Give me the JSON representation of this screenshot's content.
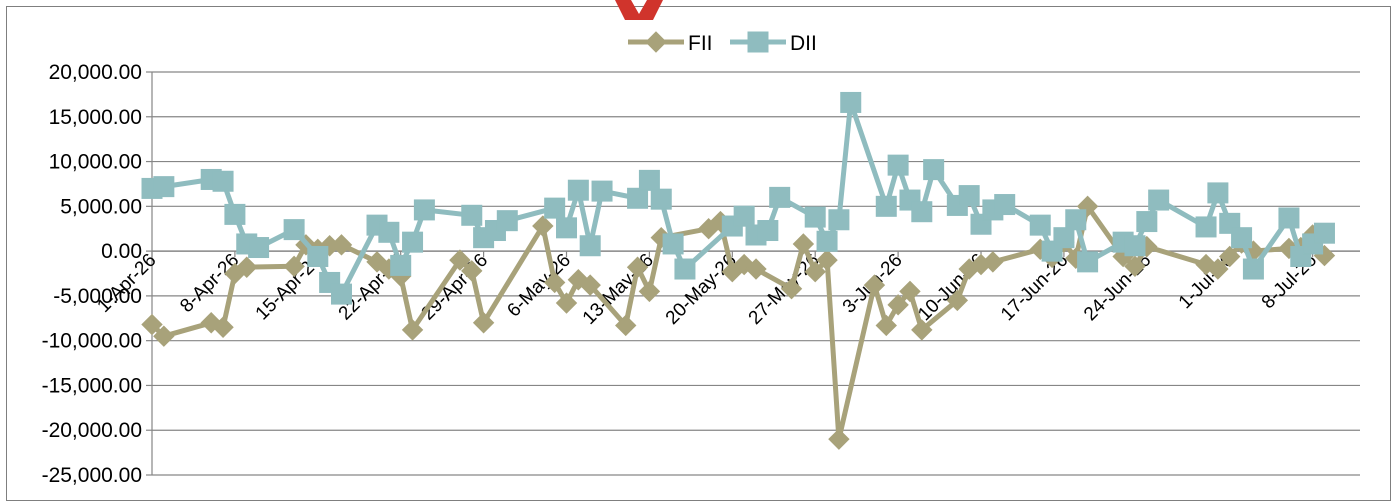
{
  "chart_data": {
    "type": "line",
    "title": "",
    "xlabel": "",
    "ylabel": "",
    "ylim": [
      -25000,
      20000
    ],
    "yticks": [
      20000,
      15000,
      10000,
      5000,
      0,
      -5000,
      -10000,
      -15000,
      -20000,
      -25000
    ],
    "ytick_labels": [
      "20,000.00",
      "15,000.00",
      "10,000.00",
      "5,000.00",
      "0.00",
      "-5,000.00",
      "-10,000.00",
      "-15,000.00",
      "-20,000.00",
      "-25,000.00"
    ],
    "xlim": [
      "2026-04-01",
      "2026-07-12"
    ],
    "xticks": [
      "2026-04-01",
      "2026-04-08",
      "2026-04-15",
      "2026-04-22",
      "2026-04-29",
      "2026-05-06",
      "2026-05-13",
      "2026-05-20",
      "2026-05-27",
      "2026-06-03",
      "2026-06-10",
      "2026-06-17",
      "2026-06-24",
      "2026-07-01",
      "2026-07-08"
    ],
    "xtick_labels": [
      "1-Apr-26",
      "8-Apr-26",
      "15-Apr-26",
      "22-Apr-26",
      "29-Apr-26",
      "6-May-26",
      "13-May-26",
      "20-May-26",
      "27-May-26",
      "3-Jun-26",
      "10-Jun-26",
      "17-Jun-26",
      "24-Jun-26",
      "1-Jul-26",
      "8-Jul-26"
    ],
    "grid": true,
    "legend_position": "top-center",
    "series": [
      {
        "name": "FII",
        "color": "#a8a27a",
        "marker": "diamond",
        "points": [
          {
            "x": "2026-04-01",
            "y": -8200
          },
          {
            "x": "2026-04-02",
            "y": -9500
          },
          {
            "x": "2026-04-06",
            "y": -8000
          },
          {
            "x": "2026-04-07",
            "y": -8500
          },
          {
            "x": "2026-04-08",
            "y": -2500
          },
          {
            "x": "2026-04-09",
            "y": -1800
          },
          {
            "x": "2026-04-13",
            "y": -1700
          },
          {
            "x": "2026-04-14",
            "y": 700
          },
          {
            "x": "2026-04-15",
            "y": 200
          },
          {
            "x": "2026-04-16",
            "y": 600
          },
          {
            "x": "2026-04-17",
            "y": 700
          },
          {
            "x": "2026-04-20",
            "y": -1200
          },
          {
            "x": "2026-04-21",
            "y": -2000
          },
          {
            "x": "2026-04-22",
            "y": -2800
          },
          {
            "x": "2026-04-23",
            "y": -8800
          },
          {
            "x": "2026-04-27",
            "y": -1000
          },
          {
            "x": "2026-04-28",
            "y": -2200
          },
          {
            "x": "2026-04-29",
            "y": -8000
          },
          {
            "x": "2026-05-04",
            "y": 2800
          },
          {
            "x": "2026-05-05",
            "y": -3500
          },
          {
            "x": "2026-05-06",
            "y": -5800
          },
          {
            "x": "2026-05-07",
            "y": -3200
          },
          {
            "x": "2026-05-08",
            "y": -3800
          },
          {
            "x": "2026-05-11",
            "y": -8300
          },
          {
            "x": "2026-05-12",
            "y": -1800
          },
          {
            "x": "2026-05-13",
            "y": -4500
          },
          {
            "x": "2026-05-14",
            "y": 1500
          },
          {
            "x": "2026-05-18",
            "y": 2500
          },
          {
            "x": "2026-05-19",
            "y": 3300
          },
          {
            "x": "2026-05-20",
            "y": -2300
          },
          {
            "x": "2026-05-21",
            "y": -1500
          },
          {
            "x": "2026-05-22",
            "y": -2000
          },
          {
            "x": "2026-05-25",
            "y": -4200
          },
          {
            "x": "2026-05-26",
            "y": 800
          },
          {
            "x": "2026-05-27",
            "y": -2300
          },
          {
            "x": "2026-05-28",
            "y": -1000
          },
          {
            "x": "2026-05-29",
            "y": -21000
          },
          {
            "x": "2026-06-01",
            "y": -3800
          },
          {
            "x": "2026-06-02",
            "y": -8300
          },
          {
            "x": "2026-06-03",
            "y": -6000
          },
          {
            "x": "2026-06-04",
            "y": -4500
          },
          {
            "x": "2026-06-05",
            "y": -8800
          },
          {
            "x": "2026-06-08",
            "y": -5500
          },
          {
            "x": "2026-06-09",
            "y": -2000
          },
          {
            "x": "2026-06-10",
            "y": -1500
          },
          {
            "x": "2026-06-11",
            "y": -1200
          },
          {
            "x": "2026-06-15",
            "y": 200
          },
          {
            "x": "2026-06-16",
            "y": -700
          },
          {
            "x": "2026-06-17",
            "y": 1000
          },
          {
            "x": "2026-06-18",
            "y": -800
          },
          {
            "x": "2026-06-19",
            "y": 5000
          },
          {
            "x": "2026-06-22",
            "y": -600
          },
          {
            "x": "2026-06-23",
            "y": -1700
          },
          {
            "x": "2026-06-24",
            "y": 500
          },
          {
            "x": "2026-06-29",
            "y": -1500
          },
          {
            "x": "2026-06-30",
            "y": -2000
          },
          {
            "x": "2026-07-01",
            "y": -600
          },
          {
            "x": "2026-07-02",
            "y": 900
          },
          {
            "x": "2026-07-03",
            "y": 0
          },
          {
            "x": "2026-07-06",
            "y": 300
          },
          {
            "x": "2026-07-07",
            "y": 400
          },
          {
            "x": "2026-07-08",
            "y": 1800
          },
          {
            "x": "2026-07-09",
            "y": -500
          }
        ]
      },
      {
        "name": "DII",
        "color": "#8fbcbf",
        "marker": "square",
        "points": [
          {
            "x": "2026-04-01",
            "y": 7000
          },
          {
            "x": "2026-04-02",
            "y": 7200
          },
          {
            "x": "2026-04-06",
            "y": 8000
          },
          {
            "x": "2026-04-07",
            "y": 7800
          },
          {
            "x": "2026-04-08",
            "y": 4100
          },
          {
            "x": "2026-04-09",
            "y": 800
          },
          {
            "x": "2026-04-10",
            "y": 400
          },
          {
            "x": "2026-04-13",
            "y": 2400
          },
          {
            "x": "2026-04-15",
            "y": -600
          },
          {
            "x": "2026-04-16",
            "y": -3500
          },
          {
            "x": "2026-04-17",
            "y": -4800
          },
          {
            "x": "2026-04-20",
            "y": 2900
          },
          {
            "x": "2026-04-21",
            "y": 2100
          },
          {
            "x": "2026-04-22",
            "y": -1600
          },
          {
            "x": "2026-04-23",
            "y": 1000
          },
          {
            "x": "2026-04-24",
            "y": 4600
          },
          {
            "x": "2026-04-28",
            "y": 4000
          },
          {
            "x": "2026-04-29",
            "y": 1500
          },
          {
            "x": "2026-04-30",
            "y": 2300
          },
          {
            "x": "2026-05-01",
            "y": 3400
          },
          {
            "x": "2026-05-05",
            "y": 4800
          },
          {
            "x": "2026-05-06",
            "y": 2600
          },
          {
            "x": "2026-05-07",
            "y": 6800
          },
          {
            "x": "2026-05-08",
            "y": 600
          },
          {
            "x": "2026-05-09",
            "y": 6700
          },
          {
            "x": "2026-05-12",
            "y": 5900
          },
          {
            "x": "2026-05-13",
            "y": 7900
          },
          {
            "x": "2026-05-14",
            "y": 5800
          },
          {
            "x": "2026-05-15",
            "y": 800
          },
          {
            "x": "2026-05-16",
            "y": -2000
          },
          {
            "x": "2026-05-20",
            "y": 2800
          },
          {
            "x": "2026-05-21",
            "y": 3900
          },
          {
            "x": "2026-05-22",
            "y": 1800
          },
          {
            "x": "2026-05-23",
            "y": 2300
          },
          {
            "x": "2026-05-24",
            "y": 6000
          },
          {
            "x": "2026-05-27",
            "y": 3800
          },
          {
            "x": "2026-05-28",
            "y": 1100
          },
          {
            "x": "2026-05-29",
            "y": 3500
          },
          {
            "x": "2026-05-30",
            "y": 16600
          },
          {
            "x": "2026-06-02",
            "y": 5000
          },
          {
            "x": "2026-06-03",
            "y": 9600
          },
          {
            "x": "2026-06-04",
            "y": 5700
          },
          {
            "x": "2026-06-05",
            "y": 4400
          },
          {
            "x": "2026-06-06",
            "y": 9100
          },
          {
            "x": "2026-06-08",
            "y": 5100
          },
          {
            "x": "2026-06-09",
            "y": 6200
          },
          {
            "x": "2026-06-10",
            "y": 3000
          },
          {
            "x": "2026-06-11",
            "y": 4600
          },
          {
            "x": "2026-06-12",
            "y": 5200
          },
          {
            "x": "2026-06-15",
            "y": 2900
          },
          {
            "x": "2026-06-16",
            "y": 0
          },
          {
            "x": "2026-06-17",
            "y": 1500
          },
          {
            "x": "2026-06-18",
            "y": 3500
          },
          {
            "x": "2026-06-19",
            "y": -1200
          },
          {
            "x": "2026-06-22",
            "y": 1000
          },
          {
            "x": "2026-06-23",
            "y": 600
          },
          {
            "x": "2026-06-24",
            "y": 3300
          },
          {
            "x": "2026-06-25",
            "y": 5700
          },
          {
            "x": "2026-06-29",
            "y": 2700
          },
          {
            "x": "2026-06-30",
            "y": 6500
          },
          {
            "x": "2026-07-01",
            "y": 3100
          },
          {
            "x": "2026-07-02",
            "y": 1500
          },
          {
            "x": "2026-07-03",
            "y": -2000
          },
          {
            "x": "2026-07-06",
            "y": 3700
          },
          {
            "x": "2026-07-07",
            "y": -600
          },
          {
            "x": "2026-07-08",
            "y": 800
          },
          {
            "x": "2026-07-09",
            "y": 2000
          }
        ]
      }
    ]
  }
}
